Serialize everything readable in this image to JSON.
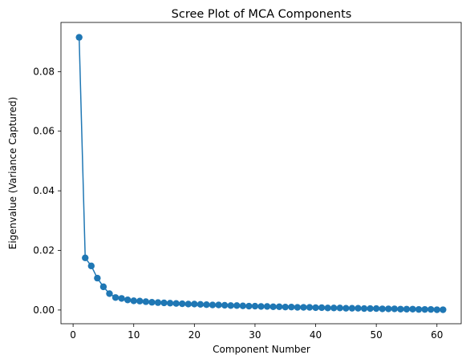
{
  "chart_data": {
    "type": "line",
    "title": "Scree Plot of MCA Components",
    "xlabel": "Component Number",
    "ylabel": "Eigenvalue (Variance Captured)",
    "xlim": [
      -2,
      64
    ],
    "ylim": [
      -0.0046,
      0.0965
    ],
    "xticks": [
      0,
      10,
      20,
      30,
      40,
      50,
      60
    ],
    "yticks": [
      0.0,
      0.02,
      0.04,
      0.06,
      0.08
    ],
    "ytick_labels": [
      "0.00",
      "0.02",
      "0.04",
      "0.06",
      "0.08"
    ],
    "grid": false,
    "marker": "circle",
    "color": "#1f77b4",
    "series": [
      {
        "x": [
          1,
          2,
          3,
          4,
          5,
          6,
          7,
          8,
          9,
          10,
          11,
          12,
          13,
          14,
          15,
          16,
          17,
          18,
          19,
          20,
          21,
          22,
          23,
          24,
          25,
          26,
          27,
          28,
          29,
          30,
          31,
          32,
          33,
          34,
          35,
          36,
          37,
          38,
          39,
          40,
          41,
          42,
          43,
          44,
          45,
          46,
          47,
          48,
          49,
          50,
          51,
          52,
          53,
          54,
          55,
          56,
          57,
          58,
          59,
          60,
          61
        ],
        "values": [
          0.0915,
          0.0175,
          0.0148,
          0.0107,
          0.0078,
          0.0055,
          0.0042,
          0.0039,
          0.0034,
          0.0031,
          0.003,
          0.0028,
          0.0026,
          0.0025,
          0.0024,
          0.0023,
          0.0022,
          0.0021,
          0.002,
          0.002,
          0.0019,
          0.0018,
          0.0017,
          0.0017,
          0.0016,
          0.0015,
          0.0015,
          0.0014,
          0.0013,
          0.0013,
          0.0012,
          0.0012,
          0.0011,
          0.0011,
          0.001,
          0.001,
          0.0009,
          0.0009,
          0.0009,
          0.0008,
          0.0008,
          0.0007,
          0.0007,
          0.0007,
          0.0006,
          0.0006,
          0.0006,
          0.0005,
          0.0005,
          0.0005,
          0.0004,
          0.0004,
          0.0004,
          0.0003,
          0.0003,
          0.0003,
          0.0002,
          0.0002,
          0.0002,
          0.0001,
          0.0001
        ]
      }
    ]
  }
}
